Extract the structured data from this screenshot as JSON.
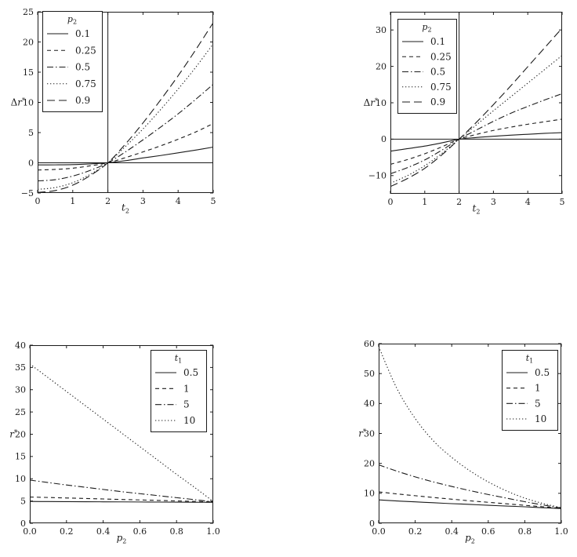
{
  "figure": {
    "background": "#ffffff",
    "ink": "#1b1b1b",
    "description": "2x2 grid of monochrome line plots"
  },
  "chart_data": [
    {
      "id": "top-left",
      "type": "line",
      "xlabel": {
        "base": "t",
        "sub": "2"
      },
      "ylabel": {
        "prefix": "Δ",
        "base": "r",
        "sup": "*"
      },
      "xlim": [
        0,
        5
      ],
      "ylim": [
        -5,
        25
      ],
      "xtick_values": [
        0,
        1,
        2,
        3,
        4,
        5
      ],
      "xticks": [
        "0",
        "1",
        "2",
        "3",
        "4",
        "5"
      ],
      "ytick_values": [
        -5,
        0,
        5,
        10,
        15,
        20,
        25
      ],
      "yticks": [
        "−5",
        "0",
        "5",
        "10",
        "15",
        "20",
        "25"
      ],
      "grid": false,
      "reference_lines": {
        "vertical_x": 2,
        "horizontal_y": 0
      },
      "legend": {
        "title": {
          "base": "p",
          "sub": "2"
        },
        "position": "top-left-inside"
      },
      "x": [
        0,
        0.5,
        1,
        1.5,
        2,
        2.5,
        3,
        3.5,
        4,
        4.5,
        5
      ],
      "series": [
        {
          "name": "0.1",
          "dash": "solid",
          "y": [
            -0.35,
            -0.34,
            -0.3,
            -0.18,
            0,
            0.35,
            0.8,
            1.2,
            1.65,
            2.1,
            2.6
          ]
        },
        {
          "name": "0.25",
          "dash": "dash",
          "y": [
            -1.2,
            -1.1,
            -0.9,
            -0.5,
            0,
            0.85,
            1.8,
            2.8,
            3.9,
            5.1,
            6.5
          ]
        },
        {
          "name": "0.5",
          "dash": "dashdot",
          "y": [
            -3.0,
            -2.8,
            -2.2,
            -1.25,
            0,
            1.8,
            3.8,
            5.9,
            8.1,
            10.5,
            13.0
          ]
        },
        {
          "name": "0.75",
          "dash": "dot",
          "y": [
            -4.4,
            -4.1,
            -3.3,
            -1.9,
            0,
            2.7,
            5.6,
            8.8,
            12.2,
            15.8,
            19.7
          ]
        },
        {
          "name": "0.9",
          "dash": "longdash",
          "y": [
            -4.9,
            -4.6,
            -3.7,
            -2.1,
            0,
            3.1,
            6.6,
            10.4,
            14.4,
            18.7,
            23.2
          ]
        }
      ],
      "px": {
        "cell": [
          0,
          0,
          368,
          280
        ],
        "frame": [
          48,
          15,
          272,
          246
        ],
        "legend": [
          54,
          14,
          76,
          128
        ]
      }
    },
    {
      "id": "top-right",
      "type": "line",
      "xlabel": {
        "base": "t",
        "sub": "2"
      },
      "ylabel": {
        "prefix": "Δ",
        "base": "r",
        "sup": "*"
      },
      "xlim": [
        0,
        5
      ],
      "ylim": [
        -15,
        35
      ],
      "xtick_values": [
        0,
        1,
        2,
        3,
        4,
        5
      ],
      "xticks": [
        "0",
        "1",
        "2",
        "3",
        "4",
        "5"
      ],
      "ytick_values": [
        -10,
        0,
        10,
        20,
        30
      ],
      "yticks": [
        "−10",
        "0",
        "10",
        "20",
        "30"
      ],
      "grid": false,
      "reference_lines": {
        "vertical_x": 2,
        "horizontal_y": 0
      },
      "legend": {
        "title": {
          "base": "p",
          "sub": "2"
        },
        "position": "top-left-inside"
      },
      "x": [
        0,
        0.5,
        1,
        1.5,
        2,
        2.5,
        3,
        3.5,
        4,
        4.5,
        5
      ],
      "series": [
        {
          "name": "0.1",
          "dash": "solid",
          "y": [
            -3.3,
            -2.6,
            -1.9,
            -1.0,
            0,
            0.45,
            0.8,
            1.1,
            1.35,
            1.6,
            1.8
          ]
        },
        {
          "name": "0.25",
          "dash": "dash",
          "y": [
            -6.9,
            -5.6,
            -4.0,
            -2.1,
            0,
            1.3,
            2.4,
            3.3,
            4.1,
            4.8,
            5.5
          ]
        },
        {
          "name": "0.5",
          "dash": "dashdot",
          "y": [
            -9.5,
            -7.8,
            -5.7,
            -3.0,
            0,
            2.5,
            4.9,
            7.1,
            9.0,
            10.8,
            12.5
          ]
        },
        {
          "name": "0.75",
          "dash": "dot",
          "y": [
            -12.1,
            -10.0,
            -7.3,
            -3.9,
            0,
            3.9,
            7.8,
            11.6,
            15.4,
            19.2,
            23.0
          ]
        },
        {
          "name": "0.9",
          "dash": "longdash",
          "y": [
            -13.0,
            -10.8,
            -8.0,
            -4.3,
            0,
            4.6,
            9.5,
            14.6,
            19.9,
            25.2,
            30.5
          ]
        }
      ],
      "px": {
        "cell": [
          368,
          0,
          368,
          280
        ],
        "frame": [
          130,
          15,
          349,
          247
        ],
        "legend": [
          139,
          24,
          75,
          120
        ]
      }
    },
    {
      "id": "bottom-left",
      "type": "line",
      "xlabel": {
        "base": "p",
        "sub": "2"
      },
      "ylabel": {
        "base": "r",
        "sup": "*"
      },
      "xlim": [
        0,
        1
      ],
      "ylim": [
        0,
        40
      ],
      "xtick_values": [
        0,
        0.2,
        0.4,
        0.6,
        0.8,
        1.0
      ],
      "xticks": [
        "0.0",
        "0.2",
        "0.4",
        "0.6",
        "0.8",
        "1.0"
      ],
      "ytick_values": [
        0,
        5,
        10,
        15,
        20,
        25,
        30,
        35,
        40
      ],
      "yticks": [
        "0",
        "5",
        "10",
        "15",
        "20",
        "25",
        "30",
        "35",
        "40"
      ],
      "grid": false,
      "reference_lines": null,
      "legend": {
        "title": {
          "base": "t",
          "sub": "1"
        },
        "position": "top-right-inside"
      },
      "x": [
        0,
        0.1,
        0.2,
        0.3,
        0.4,
        0.5,
        0.6,
        0.7,
        0.8,
        0.9,
        1.0
      ],
      "series": [
        {
          "name": "0.5",
          "dash": "solid",
          "y": [
            4.9,
            4.88,
            4.86,
            4.84,
            4.82,
            4.8,
            4.78,
            4.76,
            4.74,
            4.72,
            4.7
          ]
        },
        {
          "name": "1",
          "dash": "dash",
          "y": [
            5.9,
            5.79,
            5.68,
            5.57,
            5.46,
            5.35,
            5.24,
            5.13,
            5.02,
            4.91,
            4.8
          ]
        },
        {
          "name": "5",
          "dash": "dashdot",
          "y": [
            9.7,
            9.15,
            8.6,
            8.1,
            7.6,
            7.1,
            6.65,
            6.2,
            5.75,
            5.3,
            4.8
          ]
        },
        {
          "name": "10",
          "dash": "dot",
          "y": [
            35.8,
            32.7,
            29.6,
            26.5,
            23.4,
            20.3,
            17.2,
            14.1,
            11.0,
            8.0,
            4.9
          ]
        }
      ],
      "px": {
        "cell": [
          0,
          420,
          368,
          290
        ],
        "frame": [
          38,
          20,
          272,
          247
        ],
        "legend": [
          192,
          26,
          71,
          104
        ]
      }
    },
    {
      "id": "bottom-right",
      "type": "line",
      "xlabel": {
        "base": "p",
        "sub": "2"
      },
      "ylabel": {
        "base": "r",
        "sup": "*"
      },
      "xlim": [
        0,
        1
      ],
      "ylim": [
        0,
        60
      ],
      "xtick_values": [
        0,
        0.2,
        0.4,
        0.6,
        0.8,
        1.0
      ],
      "xticks": [
        "0.0",
        "0.2",
        "0.4",
        "0.6",
        "0.8",
        "1.0"
      ],
      "ytick_values": [
        0,
        10,
        20,
        30,
        40,
        50,
        60
      ],
      "yticks": [
        "0",
        "10",
        "20",
        "30",
        "40",
        "50",
        "60"
      ],
      "grid": false,
      "reference_lines": null,
      "legend": {
        "title": {
          "base": "t",
          "sub": "1"
        },
        "position": "top-right-inside"
      },
      "x": [
        0,
        0.1,
        0.2,
        0.3,
        0.4,
        0.5,
        0.6,
        0.7,
        0.8,
        0.9,
        1.0
      ],
      "series": [
        {
          "name": "0.5",
          "dash": "solid",
          "y": [
            7.8,
            7.45,
            7.15,
            6.85,
            6.55,
            6.3,
            6.0,
            5.75,
            5.5,
            5.2,
            4.9
          ]
        },
        {
          "name": "1",
          "dash": "dash",
          "y": [
            10.5,
            9.8,
            9.2,
            8.6,
            8.05,
            7.5,
            7.0,
            6.5,
            6.0,
            5.5,
            5.0
          ]
        },
        {
          "name": "5",
          "dash": "dashdot",
          "y": [
            19.5,
            17.4,
            15.5,
            13.8,
            12.3,
            10.9,
            9.6,
            8.4,
            7.2,
            6.1,
            5.1
          ]
        },
        {
          "name": "10",
          "dash": "dot",
          "y": [
            59,
            45,
            35,
            27.5,
            22,
            17.5,
            13.8,
            10.8,
            8.4,
            6.6,
            5.2
          ]
        }
      ],
      "px": {
        "cell": [
          368,
          420,
          368,
          290
        ],
        "frame": [
          115,
          18,
          348,
          247
        ],
        "legend": [
          272,
          26,
          71,
          102
        ]
      }
    }
  ]
}
